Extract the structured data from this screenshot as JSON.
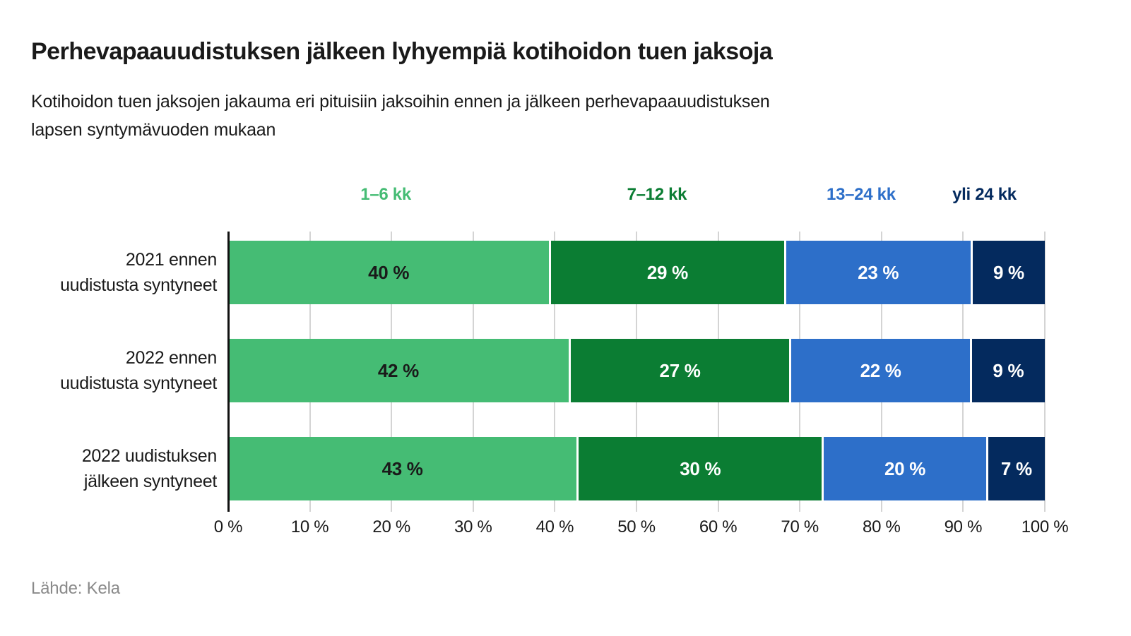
{
  "header": {
    "title": "Perhevapaauudistuksen jälkeen lyhyempiä kotihoidon tuen jaksoja",
    "subtitle_line1": "Kotihoidon tuen jaksojen jakauma eri pituisiin jaksoihin ennen ja jälkeen perhevapaauudistuksen",
    "subtitle_line2": "lapsen syntymävuoden mukaan"
  },
  "source": "Lähde: Kela",
  "colors": {
    "text": "#1a1a1a",
    "axis": "#111111",
    "gridline": "#d4d4d4",
    "source_text": "#8a8a8a",
    "segment_gap": "#ffffff"
  },
  "chart_data": {
    "type": "bar",
    "orientation": "horizontal",
    "stacked": true,
    "grid": true,
    "legend_position": "top",
    "xlim": [
      0,
      100
    ],
    "value_suffix": " %",
    "categories": [
      "2021 ennen uudistusta syntyneet",
      "2022 ennen uudistusta syntyneet",
      "2022 uudistuksen jälkeen syntyneet"
    ],
    "category_label_lines": [
      [
        "2021 ennen",
        "uudistusta syntyneet"
      ],
      [
        "2022 ennen",
        "uudistusta syntyneet"
      ],
      [
        "2022 uudistuksen",
        "jälkeen syntyneet"
      ]
    ],
    "series": [
      {
        "name": "1–6 kk",
        "color": "#45bc74",
        "value_label_color": "#1a1a1a",
        "values": [
          40,
          42,
          43
        ]
      },
      {
        "name": "7–12 kk",
        "color": "#0b7d33",
        "value_label_color": "#ffffff",
        "values": [
          29,
          27,
          30
        ]
      },
      {
        "name": "13–24 kk",
        "color": "#2d6fc9",
        "value_label_color": "#ffffff",
        "values": [
          23,
          22,
          20
        ]
      },
      {
        "name": "yli 24 kk",
        "color": "#042a5e",
        "value_label_color": "#ffffff",
        "values": [
          9,
          9,
          7
        ]
      }
    ],
    "legend_center_positions_pct": [
      19.3,
      52.5,
      77.5,
      92.6
    ],
    "x_ticks": [
      "0 %",
      "10 %",
      "20 %",
      "30 %",
      "40 %",
      "50 %",
      "60 %",
      "70 %",
      "80 %",
      "90 %",
      "100 %"
    ]
  }
}
